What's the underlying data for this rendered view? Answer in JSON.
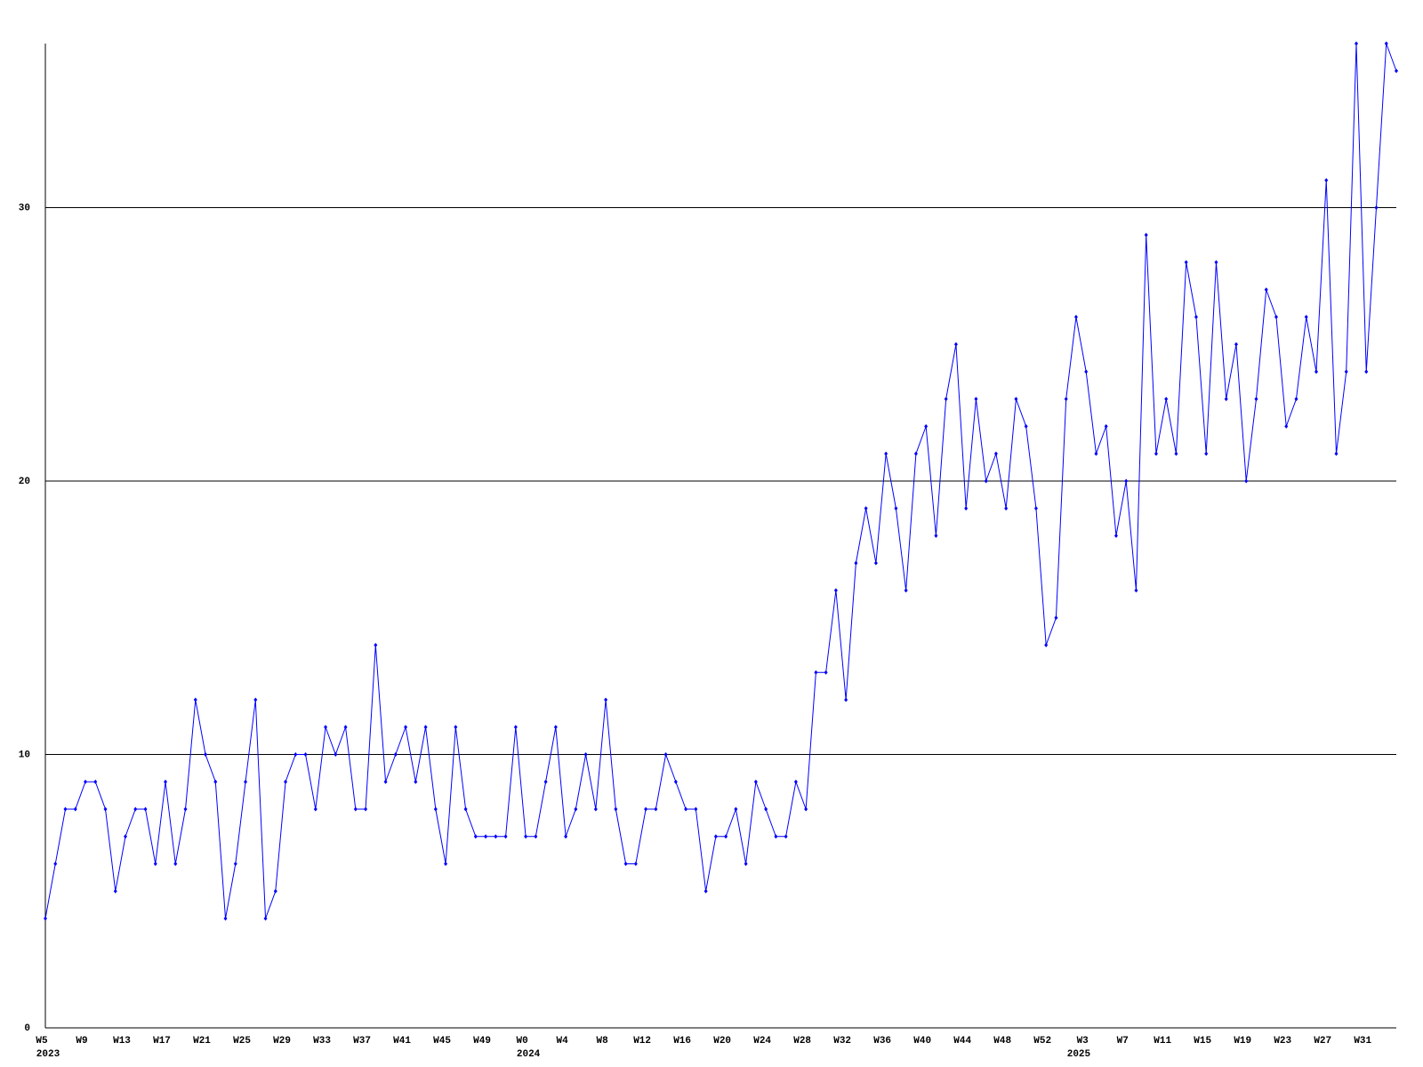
{
  "chart_data": {
    "type": "line",
    "categories": [
      "W5",
      null,
      null,
      null,
      "W9",
      null,
      null,
      null,
      "W13",
      null,
      null,
      null,
      "W17",
      null,
      null,
      null,
      "W21",
      null,
      null,
      null,
      "W25",
      null,
      null,
      null,
      "W29",
      null,
      null,
      null,
      "W33",
      null,
      null,
      null,
      "W37",
      null,
      null,
      null,
      "W41",
      null,
      null,
      null,
      "W45",
      null,
      null,
      null,
      "W49",
      null,
      null,
      null,
      "W0",
      null,
      null,
      null,
      "W4",
      null,
      null,
      null,
      "W8",
      null,
      null,
      null,
      "W12",
      null,
      null,
      null,
      "W16",
      null,
      null,
      null,
      "W20",
      null,
      null,
      null,
      "W24",
      null,
      null,
      null,
      "W28",
      null,
      null,
      null,
      "W32",
      null,
      null,
      null,
      "W36",
      null,
      null,
      null,
      "W40",
      null,
      null,
      null,
      "W44",
      null,
      null,
      null,
      "W48",
      null,
      null,
      null,
      "W52",
      null,
      null,
      null,
      "W3",
      null,
      null,
      null,
      "W7",
      null,
      null,
      null,
      "W11",
      null,
      null,
      null,
      "W15",
      null,
      null,
      null,
      "W19",
      null,
      null,
      null,
      "W23",
      null,
      null,
      null,
      "W27",
      null,
      null,
      null,
      "W31",
      null,
      null,
      null
    ],
    "category_groups": [
      "2023",
      null,
      null,
      null,
      null,
      null,
      null,
      null,
      null,
      null,
      null,
      null,
      null,
      null,
      null,
      null,
      null,
      null,
      null,
      null,
      null,
      null,
      null,
      null,
      null,
      null,
      null,
      null,
      null,
      null,
      null,
      null,
      null,
      null,
      null,
      null,
      null,
      null,
      null,
      null,
      null,
      null,
      null,
      null,
      null,
      null,
      null,
      null,
      "2024",
      null,
      null,
      null,
      null,
      null,
      null,
      null,
      null,
      null,
      null,
      null,
      null,
      null,
      null,
      null,
      null,
      null,
      null,
      null,
      null,
      null,
      null,
      null,
      null,
      null,
      null,
      null,
      null,
      null,
      null,
      null,
      null,
      null,
      null,
      null,
      null,
      null,
      null,
      null,
      null,
      null,
      null,
      null,
      null,
      null,
      null,
      null,
      null,
      null,
      null,
      null,
      null,
      null,
      null,
      "2025",
      null,
      null,
      null,
      null,
      null,
      null,
      null,
      null,
      null,
      null,
      null,
      null,
      null,
      null,
      null,
      null,
      null,
      null,
      null,
      null,
      null,
      null,
      null,
      null,
      null,
      null,
      null,
      null,
      null,
      null,
      null,
      null,
      null,
      null
    ],
    "series": [
      {
        "color": "#0000ff",
        "values": [
          4,
          6,
          8,
          8,
          9,
          9,
          8,
          5,
          7,
          8,
          8,
          6,
          9,
          6,
          8,
          12,
          10,
          9,
          4,
          6,
          9,
          12,
          4,
          5,
          9,
          10,
          10,
          8,
          11,
          10,
          11,
          8,
          8,
          14,
          9,
          10,
          11,
          9,
          11,
          8,
          6,
          11,
          8,
          7,
          7,
          7,
          7,
          11,
          7,
          7,
          9,
          11,
          7,
          8,
          10,
          8,
          12,
          8,
          6,
          6,
          8,
          8,
          10,
          9,
          8,
          8,
          5,
          7,
          7,
          8,
          6,
          9,
          8,
          7,
          7,
          9,
          8,
          13,
          13,
          16,
          12,
          17,
          19,
          17,
          21,
          19,
          16,
          21,
          22,
          18,
          23,
          25,
          19,
          23,
          20,
          21,
          19,
          23,
          22,
          19,
          14,
          15,
          23,
          26,
          24,
          21,
          22,
          18,
          20,
          16,
          29,
          21,
          23,
          21,
          28,
          26,
          21,
          28,
          23,
          25,
          20,
          23,
          27,
          26,
          22,
          23,
          26,
          24,
          31,
          21,
          24,
          36,
          24,
          30,
          36,
          35
        ]
      }
    ],
    "ylim": [
      0,
      36
    ],
    "yticks": [
      0,
      10,
      20,
      30
    ],
    "grid": true
  }
}
